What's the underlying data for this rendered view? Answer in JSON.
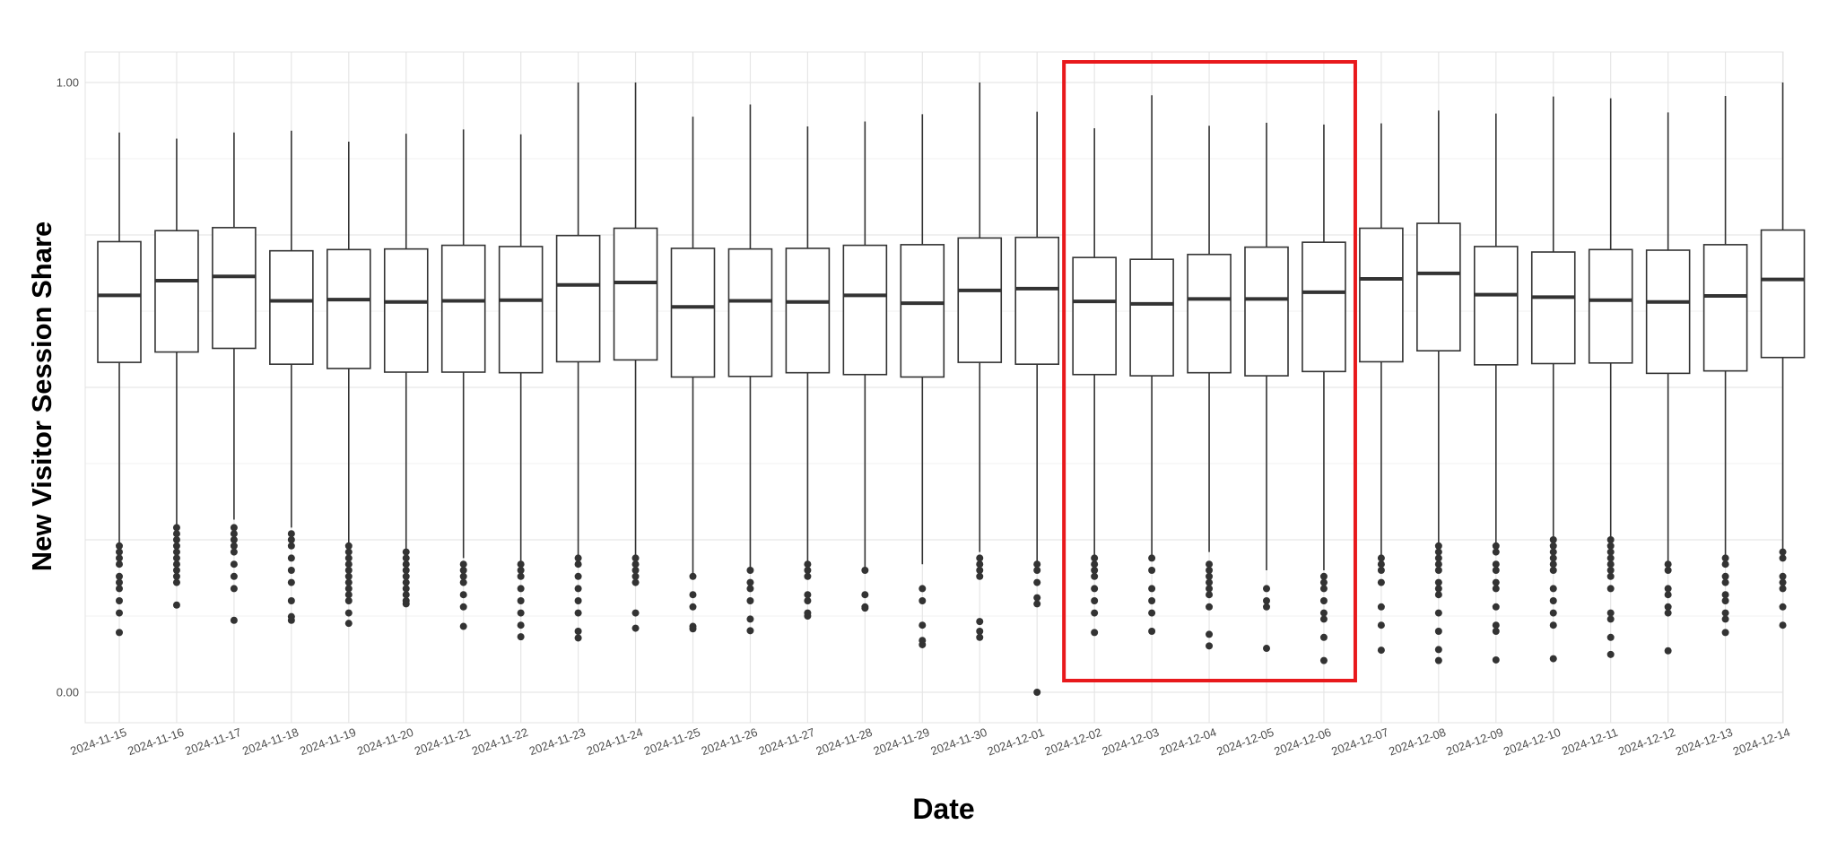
{
  "chart_data": {
    "type": "boxplot",
    "xlabel": "Date",
    "ylabel": "New Visitor Session Share",
    "ylim": [
      -0.05,
      1.05
    ],
    "y_ticks": [
      0.0,
      1.0
    ],
    "y_tick_labels": [
      "0.00",
      "1.00"
    ],
    "y_major_grid": [
      0.0,
      0.25,
      0.5,
      0.75,
      1.0
    ],
    "grid": true,
    "categories": [
      "2024-11-15",
      "2024-11-16",
      "2024-11-17",
      "2024-11-18",
      "2024-11-19",
      "2024-11-20",
      "2024-11-21",
      "2024-11-22",
      "2024-11-23",
      "2024-11-24",
      "2024-11-25",
      "2024-11-26",
      "2024-11-27",
      "2024-11-28",
      "2024-11-29",
      "2024-11-30",
      "2024-12-01",
      "2024-12-02",
      "2024-12-03",
      "2024-12-04",
      "2024-12-05",
      "2024-12-06",
      "2024-12-07",
      "2024-12-08",
      "2024-12-09",
      "2024-12-10",
      "2024-12-11",
      "2024-12-12",
      "2024-12-13",
      "2024-12-14"
    ],
    "boxes": [
      {
        "whisker_low": 0.23,
        "q1": 0.541,
        "median": 0.651,
        "q3": 0.739,
        "whisker_high": 0.918,
        "outliers": [
          0.098,
          0.13,
          0.15,
          0.17,
          0.18,
          0.19,
          0.21,
          0.22,
          0.23,
          0.24
        ]
      },
      {
        "whisker_low": 0.27,
        "q1": 0.558,
        "median": 0.675,
        "q3": 0.757,
        "whisker_high": 0.908,
        "outliers": [
          0.143,
          0.18,
          0.19,
          0.2,
          0.21,
          0.22,
          0.23,
          0.24,
          0.25,
          0.26,
          0.27
        ]
      },
      {
        "whisker_low": 0.283,
        "q1": 0.564,
        "median": 0.682,
        "q3": 0.762,
        "whisker_high": 0.918,
        "outliers": [
          0.118,
          0.17,
          0.19,
          0.21,
          0.23,
          0.24,
          0.25,
          0.26,
          0.27
        ]
      },
      {
        "whisker_low": 0.27,
        "q1": 0.538,
        "median": 0.642,
        "q3": 0.724,
        "whisker_high": 0.921,
        "outliers": [
          0.118,
          0.124,
          0.15,
          0.18,
          0.2,
          0.22,
          0.24,
          0.25,
          0.26
        ]
      },
      {
        "whisker_low": 0.23,
        "q1": 0.531,
        "median": 0.644,
        "q3": 0.726,
        "whisker_high": 0.903,
        "outliers": [
          0.113,
          0.13,
          0.15,
          0.16,
          0.17,
          0.18,
          0.19,
          0.2,
          0.21,
          0.22,
          0.23,
          0.24
        ]
      },
      {
        "whisker_low": 0.22,
        "q1": 0.525,
        "median": 0.64,
        "q3": 0.727,
        "whisker_high": 0.916,
        "outliers": [
          0.145,
          0.15,
          0.16,
          0.17,
          0.18,
          0.19,
          0.2,
          0.21,
          0.22,
          0.23
        ]
      },
      {
        "whisker_low": 0.22,
        "q1": 0.525,
        "median": 0.642,
        "q3": 0.733,
        "whisker_high": 0.923,
        "outliers": [
          0.108,
          0.14,
          0.16,
          0.18,
          0.19,
          0.2,
          0.21
        ]
      },
      {
        "whisker_low": 0.2,
        "q1": 0.524,
        "median": 0.643,
        "q3": 0.731,
        "whisker_high": 0.915,
        "outliers": [
          0.091,
          0.11,
          0.13,
          0.15,
          0.17,
          0.19,
          0.2,
          0.21
        ]
      },
      {
        "whisker_low": 0.21,
        "q1": 0.542,
        "median": 0.668,
        "q3": 0.749,
        "whisker_high": 1.0,
        "outliers": [
          0.089,
          0.1,
          0.13,
          0.15,
          0.17,
          0.19,
          0.21,
          0.22
        ]
      },
      {
        "whisker_low": 0.21,
        "q1": 0.545,
        "median": 0.672,
        "q3": 0.761,
        "whisker_high": 1.0,
        "outliers": [
          0.105,
          0.13,
          0.18,
          0.19,
          0.2,
          0.21,
          0.22
        ]
      },
      {
        "whisker_low": 0.19,
        "q1": 0.517,
        "median": 0.632,
        "q3": 0.728,
        "whisker_high": 0.944,
        "outliers": [
          0.104,
          0.108,
          0.14,
          0.16,
          0.19
        ]
      },
      {
        "whisker_low": 0.2,
        "q1": 0.518,
        "median": 0.642,
        "q3": 0.727,
        "whisker_high": 0.964,
        "outliers": [
          0.101,
          0.12,
          0.15,
          0.17,
          0.18,
          0.2
        ]
      },
      {
        "whisker_low": 0.21,
        "q1": 0.524,
        "median": 0.64,
        "q3": 0.728,
        "whisker_high": 0.928,
        "outliers": [
          0.125,
          0.13,
          0.15,
          0.16,
          0.19,
          0.2,
          0.21
        ]
      },
      {
        "whisker_low": 0.2,
        "q1": 0.521,
        "median": 0.651,
        "q3": 0.733,
        "whisker_high": 0.936,
        "outliers": [
          0.138,
          0.14,
          0.16,
          0.2
        ]
      },
      {
        "whisker_low": 0.21,
        "q1": 0.517,
        "median": 0.638,
        "q3": 0.734,
        "whisker_high": 0.948,
        "outliers": [
          0.078,
          0.085,
          0.11,
          0.15,
          0.17
        ]
      },
      {
        "whisker_low": 0.23,
        "q1": 0.541,
        "median": 0.659,
        "q3": 0.745,
        "whisker_high": 1.0,
        "outliers": [
          0.09,
          0.1,
          0.116,
          0.19,
          0.2,
          0.21,
          0.22
        ]
      },
      {
        "whisker_low": 0.2,
        "q1": 0.538,
        "median": 0.662,
        "q3": 0.746,
        "whisker_high": 0.952,
        "outliers": [
          0.0,
          0.145,
          0.155,
          0.18,
          0.2,
          0.21
        ]
      },
      {
        "whisker_low": 0.21,
        "q1": 0.521,
        "median": 0.641,
        "q3": 0.713,
        "whisker_high": 0.925,
        "outliers": [
          0.098,
          0.13,
          0.15,
          0.17,
          0.19,
          0.2,
          0.21,
          0.22
        ]
      },
      {
        "whisker_low": 0.22,
        "q1": 0.519,
        "median": 0.637,
        "q3": 0.71,
        "whisker_high": 0.979,
        "outliers": [
          0.1,
          0.13,
          0.15,
          0.17,
          0.2,
          0.22
        ]
      },
      {
        "whisker_low": 0.23,
        "q1": 0.524,
        "median": 0.645,
        "q3": 0.718,
        "whisker_high": 0.929,
        "outliers": [
          0.076,
          0.095,
          0.14,
          0.16,
          0.17,
          0.18,
          0.19,
          0.2,
          0.21
        ]
      },
      {
        "whisker_low": 0.2,
        "q1": 0.519,
        "median": 0.645,
        "q3": 0.73,
        "whisker_high": 0.934,
        "outliers": [
          0.072,
          0.14,
          0.15,
          0.17
        ]
      },
      {
        "whisker_low": 0.2,
        "q1": 0.526,
        "median": 0.656,
        "q3": 0.738,
        "whisker_high": 0.931,
        "outliers": [
          0.052,
          0.09,
          0.12,
          0.13,
          0.15,
          0.17,
          0.18,
          0.19
        ]
      },
      {
        "whisker_low": 0.22,
        "q1": 0.542,
        "median": 0.678,
        "q3": 0.761,
        "whisker_high": 0.933,
        "outliers": [
          0.069,
          0.11,
          0.14,
          0.18,
          0.2,
          0.21,
          0.22
        ]
      },
      {
        "whisker_low": 0.24,
        "q1": 0.56,
        "median": 0.687,
        "q3": 0.769,
        "whisker_high": 0.954,
        "outliers": [
          0.052,
          0.07,
          0.1,
          0.13,
          0.16,
          0.17,
          0.18,
          0.2,
          0.21,
          0.22,
          0.23,
          0.24
        ]
      },
      {
        "whisker_low": 0.24,
        "q1": 0.537,
        "median": 0.652,
        "q3": 0.731,
        "whisker_high": 0.949,
        "outliers": [
          0.053,
          0.1,
          0.11,
          0.14,
          0.17,
          0.18,
          0.2,
          0.21,
          0.23,
          0.24
        ]
      },
      {
        "whisker_low": 0.25,
        "q1": 0.539,
        "median": 0.648,
        "q3": 0.722,
        "whisker_high": 0.977,
        "outliers": [
          0.055,
          0.11,
          0.13,
          0.15,
          0.17,
          0.2,
          0.21,
          0.22,
          0.23,
          0.24,
          0.25
        ]
      },
      {
        "whisker_low": 0.25,
        "q1": 0.54,
        "median": 0.643,
        "q3": 0.726,
        "whisker_high": 0.974,
        "outliers": [
          0.062,
          0.09,
          0.12,
          0.13,
          0.17,
          0.19,
          0.2,
          0.21,
          0.22,
          0.23,
          0.24,
          0.25
        ]
      },
      {
        "whisker_low": 0.2,
        "q1": 0.523,
        "median": 0.64,
        "q3": 0.725,
        "whisker_high": 0.951,
        "outliers": [
          0.068,
          0.13,
          0.14,
          0.16,
          0.17,
          0.2,
          0.21
        ]
      },
      {
        "whisker_low": 0.22,
        "q1": 0.527,
        "median": 0.65,
        "q3": 0.734,
        "whisker_high": 0.978,
        "outliers": [
          0.098,
          0.12,
          0.13,
          0.15,
          0.16,
          0.18,
          0.19,
          0.21,
          0.22
        ]
      },
      {
        "whisker_low": 0.23,
        "q1": 0.549,
        "median": 0.677,
        "q3": 0.758,
        "whisker_high": 1.0,
        "outliers": [
          0.11,
          0.14,
          0.17,
          0.18,
          0.19,
          0.22,
          0.23
        ]
      }
    ],
    "highlight": {
      "from": "2024-12-02",
      "to": "2024-12-06",
      "color": "#e8191c"
    }
  }
}
